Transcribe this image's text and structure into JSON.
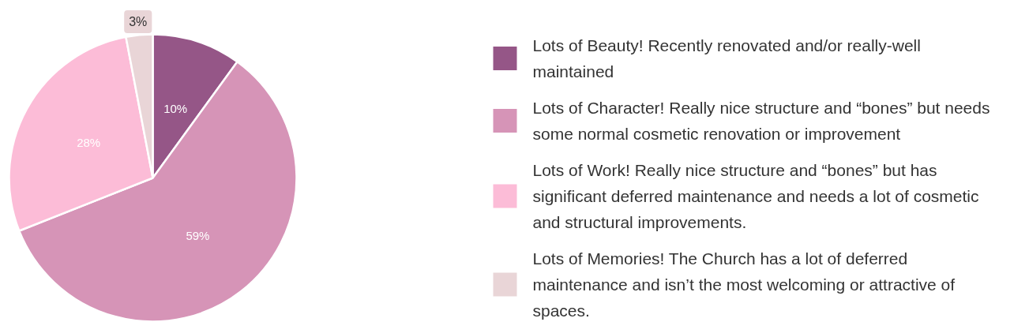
{
  "chart_data": {
    "type": "pie",
    "categories": [
      "Lots of Beauty! Recently renovated and/or really-well maintained",
      "Lots of Character! Really nice structure and “bones” but needs some normal cosmetic renovation or improvement",
      "Lots of Work! Really nice structure and “bones” but has significant deferred maintenance and needs a lot of cosmetic and structural improvements.",
      "Lots of Memories! The Church has a lot of deferred maintenance and isn’t the most welcoming or attractive of spaces."
    ],
    "values": [
      10,
      59,
      28,
      3
    ],
    "colors": [
      "#955687",
      "#d694b7",
      "#fcbcd7",
      "#e9d5d7"
    ],
    "value_labels": [
      "10%",
      "59%",
      "28%",
      "3%"
    ],
    "legend": "right"
  }
}
